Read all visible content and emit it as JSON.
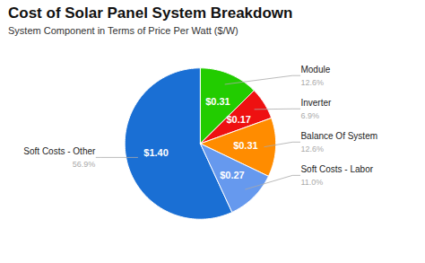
{
  "chart_data": {
    "type": "pie",
    "title": "Cost of Solar Panel System Breakdown",
    "subtitle": "System Component in Terms of Price Per Watt ($/W)",
    "categories": [
      "Soft Costs - Other",
      "Module",
      "Inverter",
      "Balance Of System",
      "Soft Costs - Labor"
    ],
    "values": [
      56.9,
      12.6,
      6.9,
      12.6,
      11.0
    ],
    "value_labels": [
      "56.9%",
      "12.6%",
      "6.9%",
      "12.6%",
      "11.0%"
    ],
    "data_labels": true,
    "prices": [
      1.4,
      0.31,
      0.17,
      0.31,
      0.27
    ],
    "price_labels": [
      "$1.40",
      "$0.31",
      "$0.17",
      "$0.31",
      "$0.27"
    ],
    "colors": [
      "#1a6fd4",
      "#22cc00",
      "#ee1111",
      "#ff8c00",
      "#6699ee"
    ]
  }
}
